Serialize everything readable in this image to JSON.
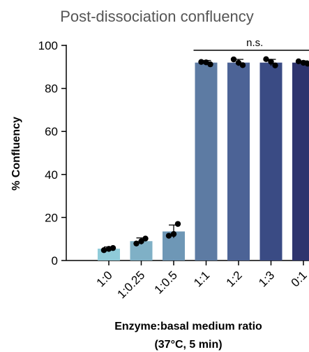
{
  "chart_data": {
    "type": "bar",
    "title": "Post-dissociation confluency",
    "ylabel": "% Confluency",
    "xlabel_line1": "Enzyme:basal medium ratio",
    "xlabel_line2": "(37°C, 5 min)",
    "ylim": [
      0,
      100
    ],
    "yticks": [
      0,
      20,
      40,
      60,
      80,
      100
    ],
    "categories": [
      "1:0",
      "1:0.25",
      "1:0.5",
      "1:1",
      "1:2",
      "1:3",
      "0:1"
    ],
    "values": [
      5.5,
      9,
      13.5,
      92,
      92,
      92,
      92
    ],
    "errors": [
      0.8,
      1.5,
      3,
      1,
      1.5,
      1.5,
      0.8
    ],
    "points": [
      [
        4.8,
        5.8,
        5.4
      ],
      [
        7.9,
        10.2,
        8.9
      ],
      [
        11.5,
        17,
        12.3
      ],
      [
        92.3,
        91.2,
        92.1
      ],
      [
        93.5,
        90.8,
        91.9
      ],
      [
        93.6,
        90.7,
        92.4
      ],
      [
        92.6,
        91.5,
        91.9
      ]
    ],
    "bar_colors": [
      "#8fcbd9",
      "#7fb0c6",
      "#6e97b6",
      "#5d7ba3",
      "#4c6396",
      "#3a4b84",
      "#2e346e"
    ],
    "annotation": "n.s.",
    "annotation_span": [
      "1:1",
      "0:1"
    ],
    "grid": false
  }
}
